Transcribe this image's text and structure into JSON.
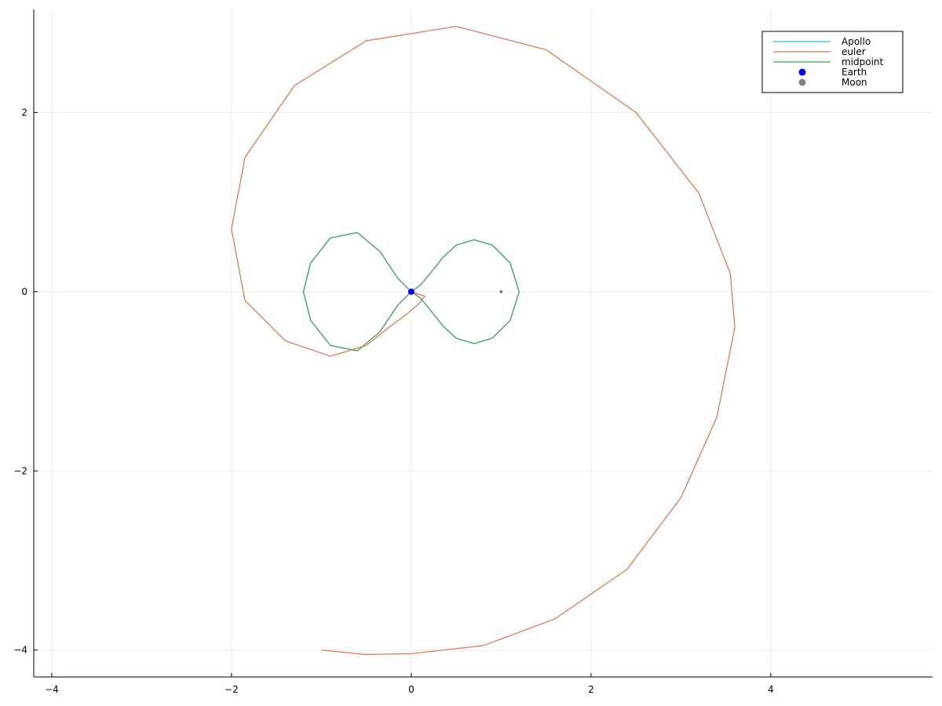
{
  "chart_data": {
    "type": "line",
    "title": "",
    "xlabel": "",
    "ylabel": "",
    "xlim": [
      -4.2,
      5.8
    ],
    "ylim": [
      -4.3,
      3.15
    ],
    "grid": true,
    "legend_position": "top-right",
    "x_ticks": [
      {
        "value": -4,
        "label": "−4"
      },
      {
        "value": -2,
        "label": "−2"
      },
      {
        "value": 0,
        "label": "0"
      },
      {
        "value": 2,
        "label": "2"
      },
      {
        "value": 4,
        "label": "4"
      }
    ],
    "y_ticks": [
      {
        "value": -4,
        "label": "−4"
      },
      {
        "value": -2,
        "label": "−2"
      },
      {
        "value": 0,
        "label": "0"
      },
      {
        "value": 2,
        "label": "2"
      }
    ],
    "series": [
      {
        "name": "Apollo",
        "kind": "line",
        "color": "#1fb6e6",
        "x": [
          0.0,
          0.1,
          0.2,
          0.35,
          0.5,
          0.7,
          0.9,
          1.1,
          1.2,
          1.1,
          0.9,
          0.7,
          0.5,
          0.35,
          0.2,
          0.1,
          0.0,
          -0.15,
          -0.35,
          -0.6,
          -0.9,
          -1.12,
          -1.2,
          -1.12,
          -0.9,
          -0.6,
          -0.35,
          -0.15,
          0.0
        ],
        "y": [
          0.0,
          -0.07,
          -0.19,
          -0.38,
          -0.52,
          -0.58,
          -0.52,
          -0.32,
          0.0,
          0.32,
          0.52,
          0.58,
          0.52,
          0.38,
          0.19,
          0.07,
          0.0,
          0.15,
          0.45,
          0.66,
          0.6,
          0.32,
          0.0,
          -0.32,
          -0.6,
          -0.66,
          -0.45,
          -0.15,
          0.0
        ]
      },
      {
        "name": "euler",
        "kind": "line",
        "color": "#e26f46",
        "x": [
          0.0,
          0.15,
          0.1,
          -0.05,
          -0.25,
          -0.5,
          -0.9,
          -1.4,
          -1.85,
          -2.0,
          -1.85,
          -1.3,
          -0.5,
          0.5,
          1.5,
          2.5,
          3.2,
          3.55,
          3.6,
          3.4,
          3.0,
          2.4,
          1.6,
          0.8,
          0.0,
          -0.5,
          -1.0
        ],
        "y": [
          0.0,
          -0.05,
          -0.12,
          -0.25,
          -0.4,
          -0.6,
          -0.72,
          -0.55,
          -0.1,
          0.7,
          1.5,
          2.3,
          2.8,
          2.96,
          2.7,
          2.0,
          1.1,
          0.2,
          -0.4,
          -1.4,
          -2.3,
          -3.1,
          -3.65,
          -3.95,
          -4.04,
          -4.05,
          -4.0
        ]
      },
      {
        "name": "midpoint",
        "kind": "line",
        "color": "#3da44d",
        "x": [
          0.0,
          0.1,
          0.2,
          0.35,
          0.5,
          0.7,
          0.9,
          1.1,
          1.2,
          1.1,
          0.9,
          0.7,
          0.5,
          0.35,
          0.2,
          0.1,
          0.0,
          -0.15,
          -0.35,
          -0.6,
          -0.9,
          -1.12,
          -1.2,
          -1.12,
          -0.9,
          -0.6,
          -0.35,
          -0.15,
          0.0
        ],
        "y": [
          0.0,
          -0.07,
          -0.19,
          -0.38,
          -0.52,
          -0.58,
          -0.52,
          -0.32,
          0.0,
          0.32,
          0.52,
          0.58,
          0.52,
          0.38,
          0.19,
          0.07,
          0.0,
          0.15,
          0.45,
          0.66,
          0.6,
          0.32,
          0.0,
          -0.32,
          -0.6,
          -0.66,
          -0.45,
          -0.15,
          0.0
        ]
      },
      {
        "name": "Earth",
        "kind": "scatter",
        "color": "#0000ff",
        "x": [
          0
        ],
        "y": [
          0
        ]
      },
      {
        "name": "Moon",
        "kind": "scatter",
        "color": "#808080",
        "x": [
          1
        ],
        "y": [
          0
        ]
      }
    ]
  }
}
